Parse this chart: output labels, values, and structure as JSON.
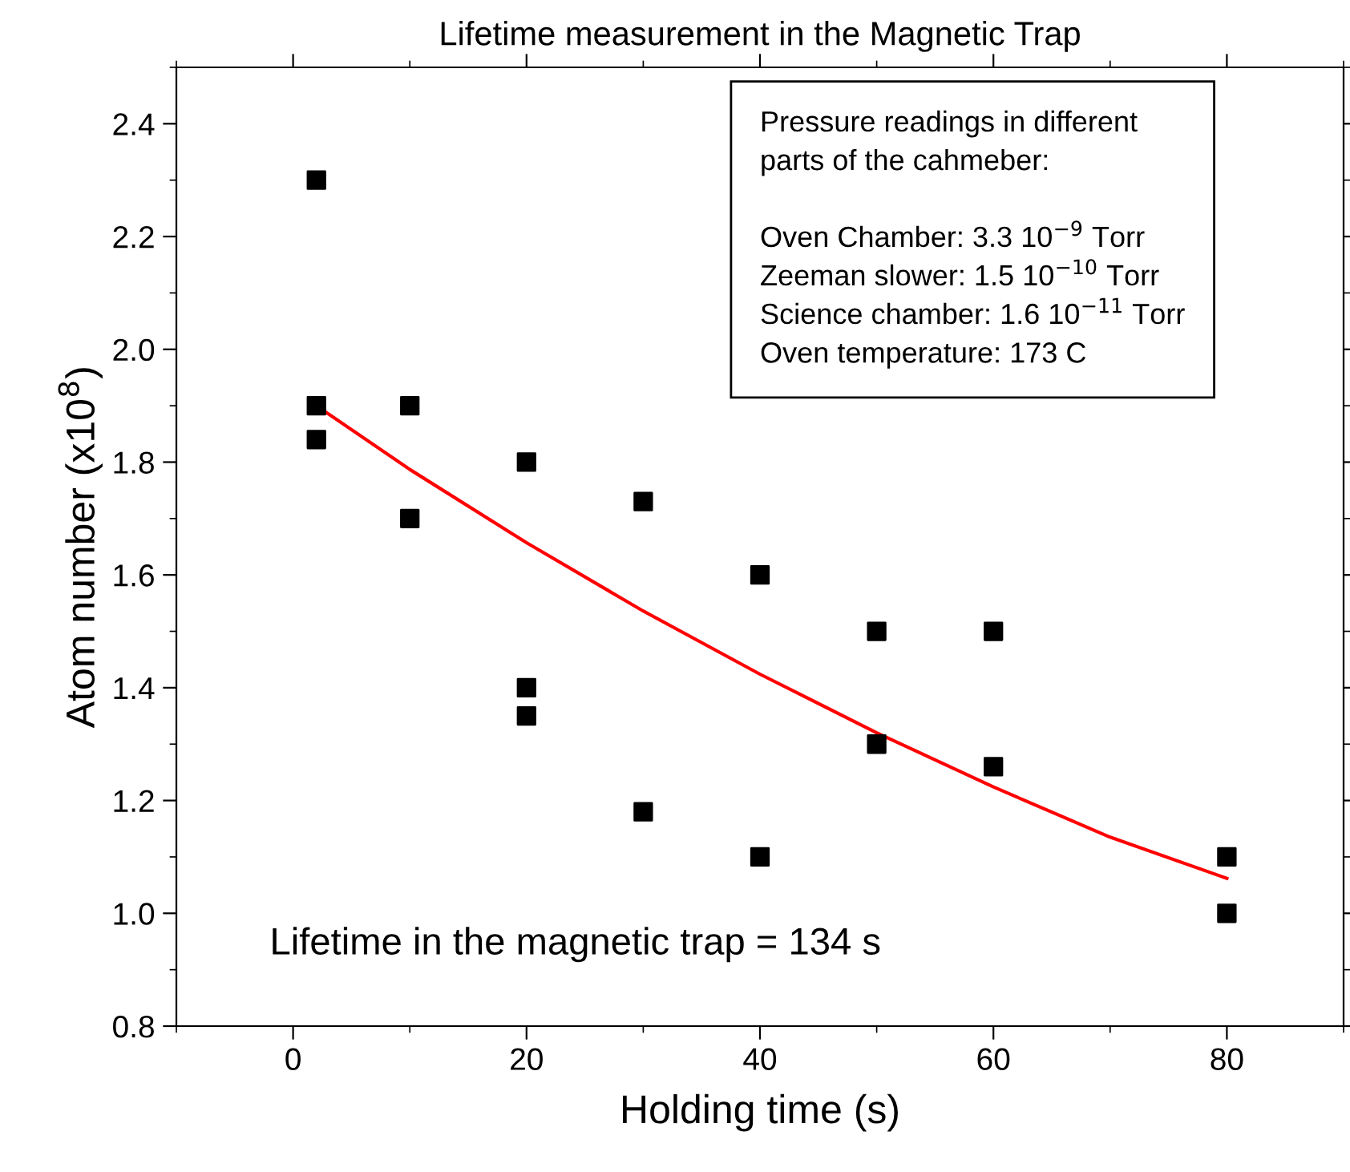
{
  "chart_data": {
    "type": "scatter",
    "title": "Lifetime measurement in the Magnetic Trap",
    "xlabel": "Holding time (s)",
    "ylabel": "Atom number (x10$^{8}$)",
    "xlim": [
      -10,
      90
    ],
    "xticks": [
      0,
      20,
      40,
      60,
      80
    ],
    "ylim": [
      0.8,
      2.5
    ],
    "yticks": [
      {
        "value": 0.8,
        "label": "0.8"
      },
      {
        "value": 1.0,
        "label": "1.0"
      },
      {
        "value": 1.2,
        "label": "1.2"
      },
      {
        "value": 1.4,
        "label": "1.4"
      },
      {
        "value": 1.6,
        "label": "1.6"
      },
      {
        "value": 1.8,
        "label": "1.8"
      },
      {
        "value": 2.0,
        "label": "2.0"
      },
      {
        "value": 2.2,
        "label": "2.2"
      },
      {
        "value": 2.4,
        "label": "2.4"
      }
    ],
    "grid": false,
    "legend": false,
    "series": [
      {
        "marker": "square",
        "color": "#000000",
        "x": [
          2,
          2,
          2,
          10,
          10,
          20,
          20,
          20,
          30,
          30,
          40,
          40,
          50,
          50,
          60,
          60,
          80,
          80
        ],
        "values": [
          2.3,
          1.9,
          1.84,
          1.9,
          1.7,
          1.8,
          1.4,
          1.35,
          1.73,
          1.18,
          1.6,
          1.1,
          1.5,
          1.3,
          1.5,
          1.26,
          1.1,
          1.0
        ]
      },
      {
        "type": "line",
        "color": "#ff0000",
        "x": [
          2,
          10,
          20,
          30,
          40,
          50,
          60,
          70,
          80
        ],
        "values": [
          1.9,
          1.787,
          1.657,
          1.536,
          1.424,
          1.32,
          1.224,
          1.135,
          1.062
        ]
      }
    ],
    "annotations": [
      "Pressure readings in different\nparts of the cahmeber:\n\nOven Chamber: 3.3 10$^{−9}$ Torr\nZeeman slower: 1.5 10$^{−10}$ Torr\nScience chamber: 1.6 10$^{−11}$ Torr\nOven temperature: 173 C",
      "Lifetime in the magnetic trap = 134 s"
    ]
  }
}
